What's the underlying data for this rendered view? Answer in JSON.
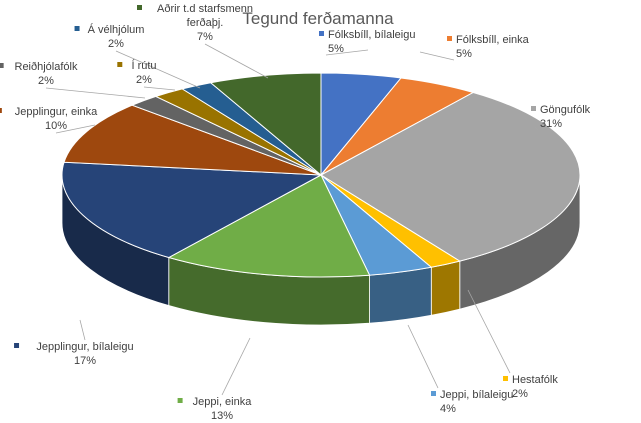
{
  "chart_data": {
    "type": "pie",
    "title": "Tegund ferðamanna",
    "style": "3d",
    "slices": [
      {
        "label_lines": [
          "Fólksbíll, bílaleigu",
          "5%"
        ],
        "value": 5,
        "color": "#4472C4",
        "marker_color": "#4472C4"
      },
      {
        "label_lines": [
          "Fólksbíll, einka",
          "5%"
        ],
        "value": 5,
        "color": "#ED7D31",
        "marker_color": "#ED7D31"
      },
      {
        "label_lines": [
          "Göngufólk",
          "31%"
        ],
        "value": 31,
        "color": "#A5A5A5",
        "marker_color": "#A5A5A5"
      },
      {
        "label_lines": [
          "Hestafólk",
          "2%"
        ],
        "value": 2,
        "color": "#FFC000",
        "marker_color": "#FFC000"
      },
      {
        "label_lines": [
          "Jeppi, bílaleigu",
          "4%"
        ],
        "value": 4,
        "color": "#5B9BD5",
        "marker_color": "#5B9BD5"
      },
      {
        "label_lines": [
          "Jeppi, einka",
          "13%"
        ],
        "value": 13,
        "color": "#70AD47",
        "marker_color": "#70AD47"
      },
      {
        "label_lines": [
          "Jepplingur, bílaleigu",
          "17%"
        ],
        "value": 17,
        "color": "#264478",
        "marker_color": "#264478"
      },
      {
        "label_lines": [
          "Jepplingur, einka",
          "10%"
        ],
        "value": 10,
        "color": "#9E480E",
        "marker_color": "#9E480E"
      },
      {
        "label_lines": [
          "Reiðhjólafólk",
          "2%"
        ],
        "value": 2,
        "color": "#636363",
        "marker_color": "#636363"
      },
      {
        "label_lines": [
          "Í rútu",
          "2%"
        ],
        "value": 2,
        "color": "#997300",
        "marker_color": "#997300"
      },
      {
        "label_lines": [
          "Á vélhjólum",
          "2%"
        ],
        "value": 2,
        "color": "#255E91",
        "marker_color": "#255E91"
      },
      {
        "label_lines": [
          "Aðrir t.d starfsmenn",
          "ferðaþj.",
          "7%"
        ],
        "value": 7,
        "color": "#43682B",
        "marker_color": "#43682B"
      }
    ]
  }
}
